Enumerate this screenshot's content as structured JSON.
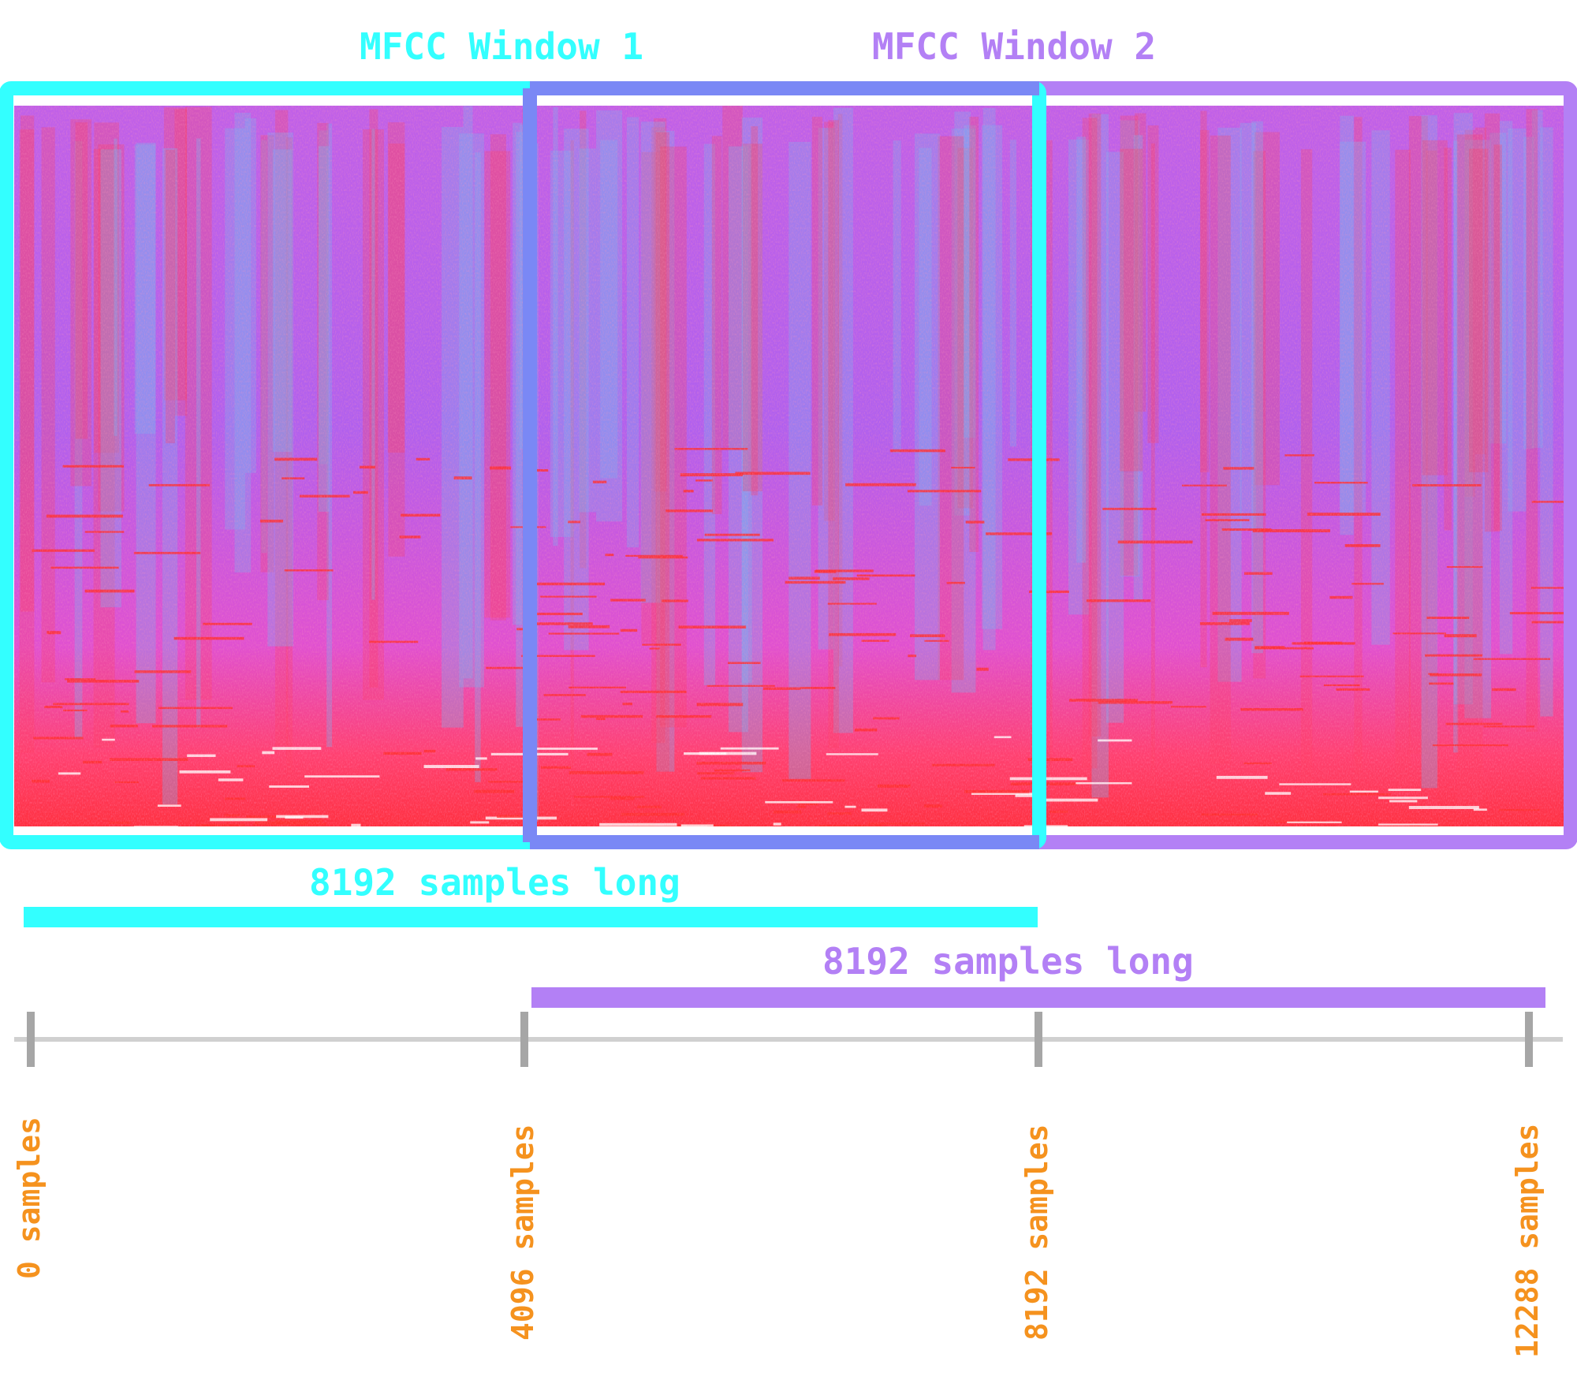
{
  "windows": [
    {
      "title": "MFCC Window 1",
      "color": "#33ffff",
      "length_label": "8192 samples long",
      "start": 0,
      "end": 8192
    },
    {
      "title": "MFCC Window 2",
      "color": "#b380f5",
      "length_label": "8192 samples long",
      "start": 4096,
      "end": 12288
    }
  ],
  "overlap_color": "#7a88f5",
  "axis": {
    "ticks": [
      {
        "value": 0,
        "label": "0 samples"
      },
      {
        "value": 4096,
        "label": "4096 samples"
      },
      {
        "value": 8192,
        "label": "8192 samples"
      },
      {
        "value": 12288,
        "label": "12288 samples"
      }
    ],
    "label_color": "#f5921e",
    "line_color": "#d0d0d0",
    "tick_color": "#a6a6a6"
  },
  "spectrogram": {
    "palette": [
      "#7ab0f0",
      "#a070f0",
      "#e050e0",
      "#ff4060",
      "#ff3030",
      "#ffffff"
    ]
  }
}
